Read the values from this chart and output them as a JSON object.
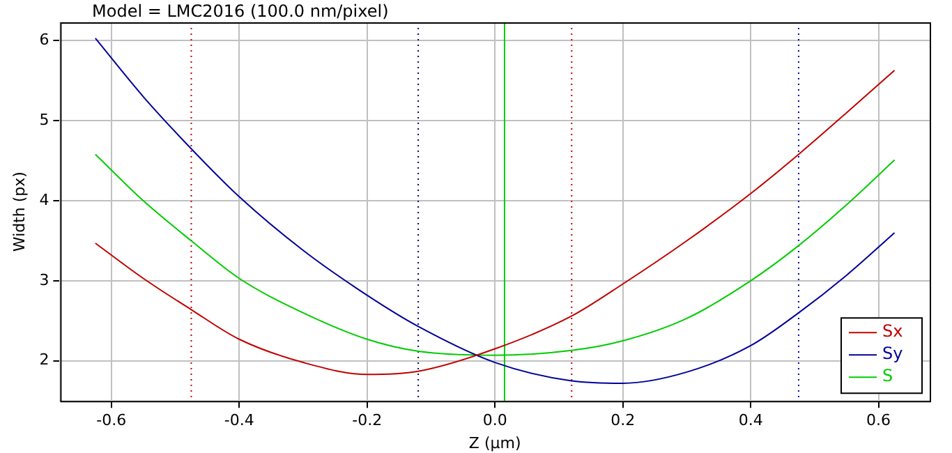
{
  "chart_data": {
    "type": "line",
    "title": "Model = LMC2016 (100.0 nm/pixel)",
    "xlabel": "Z (µm)",
    "ylabel": "Width (px)",
    "x": [
      -0.625,
      -0.55,
      -0.475,
      -0.4,
      -0.3,
      -0.2,
      -0.12,
      0,
      0.12,
      0.2,
      0.3,
      0.4,
      0.475,
      0.55,
      0.625
    ],
    "series": [
      {
        "name": "Sx",
        "color": "#c00000",
        "values": [
          3.47,
          3.03,
          2.64,
          2.27,
          1.98,
          1.83,
          1.87,
          2.15,
          2.56,
          2.96,
          3.5,
          4.09,
          4.58,
          5.1,
          5.63
        ]
      },
      {
        "name": "Sy",
        "color": "#000099",
        "values": [
          6.03,
          5.3,
          4.65,
          4.05,
          3.38,
          2.82,
          2.43,
          1.98,
          1.75,
          1.72,
          1.86,
          2.19,
          2.6,
          3.07,
          3.6
        ]
      },
      {
        "name": "S",
        "color": "#00cc00",
        "values": [
          4.58,
          4.0,
          3.5,
          3.03,
          2.6,
          2.27,
          2.12,
          2.07,
          2.13,
          2.25,
          2.53,
          3.0,
          3.44,
          3.95,
          4.51
        ]
      }
    ],
    "xlim": [
      -0.68,
      0.68
    ],
    "xticks": [
      {
        "value": -0.6,
        "label": "-0.6"
      },
      {
        "value": -0.4,
        "label": "-0.4"
      },
      {
        "value": -0.2,
        "label": "-0.2"
      },
      {
        "value": 0,
        "label": "0.0"
      },
      {
        "value": 0.2,
        "label": "0.2"
      },
      {
        "value": 0.4,
        "label": "0.4"
      },
      {
        "value": 0.6,
        "label": "0.6"
      }
    ],
    "ylim": [
      1.5,
      6.23
    ],
    "yticks": [
      2,
      3,
      4,
      5,
      6
    ],
    "ref_lines": [
      {
        "axis": "x",
        "value": -0.475,
        "label": null,
        "color": "#c00000",
        "line_style": "dotted"
      },
      {
        "axis": "x",
        "value": -0.12,
        "label": null,
        "color": "#000066",
        "line_style": "dotted"
      },
      {
        "axis": "x",
        "value": 0.015,
        "label": null,
        "color": "#00cc00",
        "line_style": "solid"
      },
      {
        "axis": "x",
        "value": 0.12,
        "label": null,
        "color": "#c00000",
        "line_style": "dotted"
      },
      {
        "axis": "x",
        "value": 0.475,
        "label": null,
        "color": "#000099",
        "line_style": "dotted"
      }
    ],
    "grid": true,
    "legend": "bottom right",
    "marker": "none",
    "line_style": "solid"
  }
}
